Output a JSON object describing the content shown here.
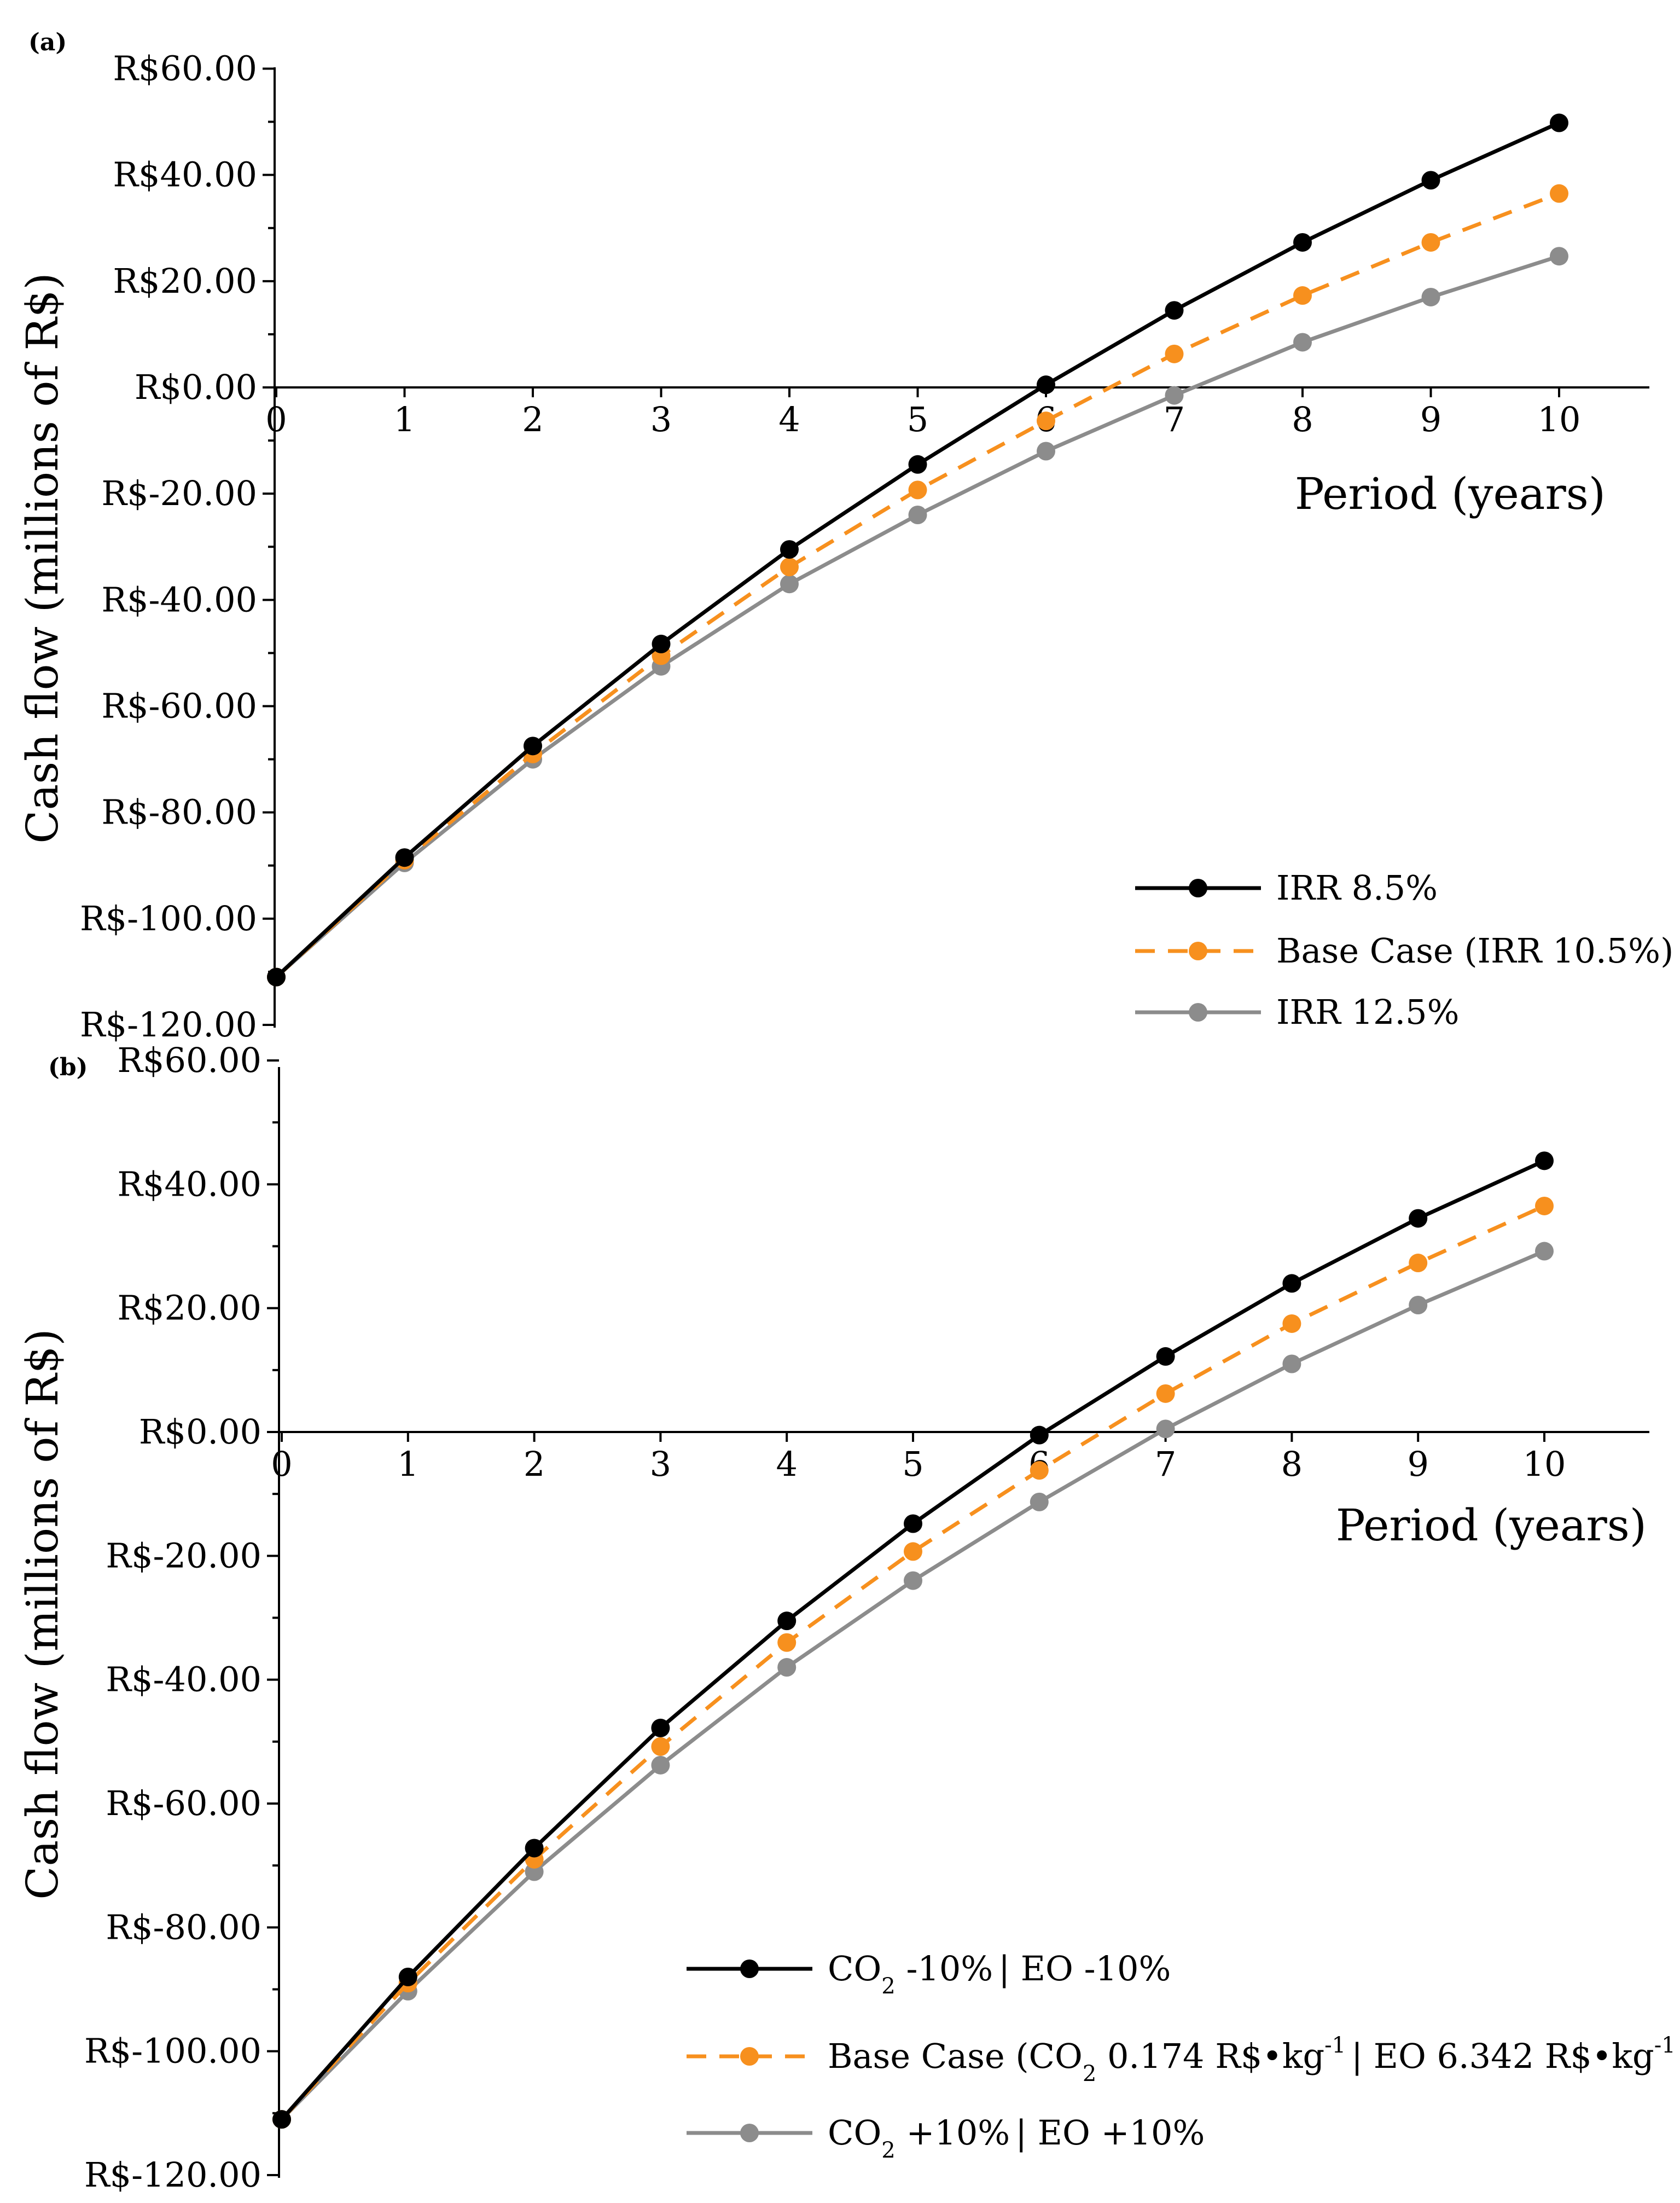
{
  "chart_data": [
    {
      "type": "line",
      "panel_label": "(a)",
      "xlabel": "Period (years)",
      "ylabel": "Cash flow (millions of R$)",
      "x": [
        0,
        1,
        2,
        3,
        4,
        5,
        6,
        7,
        8,
        9,
        10
      ],
      "x_tick_labels": [
        "0",
        "1",
        "2",
        "3",
        "4",
        "5",
        "6",
        "7",
        "8",
        "9",
        "10"
      ],
      "ylim": [
        -120,
        60
      ],
      "y_ticks": [
        60,
        40,
        20,
        0,
        -20,
        -40,
        -60,
        -80,
        -100,
        -120
      ],
      "y_tick_labels": [
        "R$60.00",
        "R$40.00",
        "R$20.00",
        "R$0.00",
        "R$-20.00",
        "R$-40.00",
        "R$-60.00",
        "R$-80.00",
        "R$-100.00",
        "R$-120.00"
      ],
      "legend_position": "bottom-right",
      "series": [
        {
          "name": "IRR 8.5%",
          "color": "#000000",
          "style": "solid",
          "legend": [
            {
              "t": "IRR 8.5%"
            }
          ],
          "values": [
            -111,
            -88.5,
            -67.5,
            -48.3,
            -30.5,
            -14.5,
            0.5,
            14.5,
            27.3,
            39.0,
            49.8
          ]
        },
        {
          "name": "Base Case (IRR 10.5%)",
          "color": "#f7901e",
          "style": "dashed",
          "legend": [
            {
              "t": "Base Case (IRR 10.5%)"
            }
          ],
          "values": [
            -111,
            -89.0,
            -69.0,
            -50.5,
            -33.8,
            -19.3,
            -6.3,
            6.3,
            17.3,
            27.3,
            36.5
          ]
        },
        {
          "name": "IRR 12.5%",
          "color": "#8c8c8c",
          "style": "solid",
          "legend": [
            {
              "t": "IRR 12.5%"
            }
          ],
          "values": [
            -111,
            -89.5,
            -70.0,
            -52.5,
            -37.0,
            -24.0,
            -12.0,
            -1.5,
            8.5,
            17.0,
            24.7
          ]
        }
      ]
    },
    {
      "type": "line",
      "panel_label": "(b)",
      "xlabel": "Period (years)",
      "ylabel": "Cash flow (millions of R$)",
      "x": [
        0,
        1,
        2,
        3,
        4,
        5,
        6,
        7,
        8,
        9,
        10
      ],
      "x_tick_labels": [
        "0",
        "1",
        "2",
        "3",
        "4",
        "5",
        "6",
        "7",
        "8",
        "9",
        "10"
      ],
      "ylim": [
        -120,
        60
      ],
      "y_ticks": [
        60,
        40,
        20,
        0,
        -20,
        -40,
        -60,
        -80,
        -100,
        -120
      ],
      "y_tick_labels": [
        "R$60.00",
        "R$40.00",
        "R$20.00",
        "R$0.00",
        "R$-20.00",
        "R$-40.00",
        "R$-60.00",
        "R$-80.00",
        "R$-100.00",
        "R$-120.00"
      ],
      "legend_position": "bottom-right",
      "series": [
        {
          "name": "CO2 -10% | EO -10%",
          "color": "#000000",
          "style": "solid",
          "legend": [
            {
              "t": "CO"
            },
            {
              "t": "2",
              "sub": true
            },
            {
              "t": " -10%"
            },
            {
              "t": "|",
              "bar": true
            },
            {
              "t": " EO -10%"
            }
          ],
          "values": [
            -111,
            -88.0,
            -67.2,
            -47.8,
            -30.5,
            -14.8,
            -0.5,
            12.2,
            24.0,
            34.5,
            43.8
          ]
        },
        {
          "name": "Base Case (CO2 0.174 R$•kg-1 | EO 6.342 R$•kg-1",
          "color": "#f7901e",
          "style": "dashed",
          "legend": [
            {
              "t": "Base Case (CO"
            },
            {
              "t": "2",
              "sub": true
            },
            {
              "t": " 0.174 R$•kg"
            },
            {
              "t": "-1",
              "sup": true
            },
            {
              "t": "|",
              "bar": true
            },
            {
              "t": " EO 6.342 R$•kg"
            },
            {
              "t": "-1",
              "sup": true
            }
          ],
          "values": [
            -111,
            -89.0,
            -69.0,
            -50.8,
            -34.0,
            -19.3,
            -6.2,
            6.2,
            17.5,
            27.3,
            36.5
          ]
        },
        {
          "name": "CO2 +10% | EO +10%",
          "color": "#8c8c8c",
          "style": "solid",
          "legend": [
            {
              "t": "CO"
            },
            {
              "t": "2",
              "sub": true
            },
            {
              "t": " +10%"
            },
            {
              "t": "|",
              "bar": true
            },
            {
              "t": " EO +10%"
            }
          ],
          "values": [
            -111,
            -90.3,
            -71.0,
            -53.8,
            -38.0,
            -24.0,
            -11.3,
            0.5,
            11.0,
            20.5,
            29.2
          ]
        }
      ]
    }
  ]
}
